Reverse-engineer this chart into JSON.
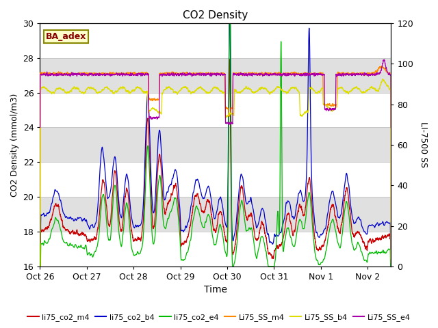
{
  "title": "CO2 Density",
  "xlabel": "Time",
  "ylabel_left": "CO2 Density (mmol/m3)",
  "ylabel_right": "LI-7500 SS",
  "ylim_left": [
    16,
    30
  ],
  "ylim_right": [
    0,
    120
  ],
  "xlim": [
    0,
    7.5
  ],
  "annotation_text": "BA_adex",
  "annotation_box_facecolor": "#ffffcc",
  "annotation_border_color": "#888800",
  "annotation_text_color": "#880000",
  "xtick_labels": [
    "Oct 26",
    "Oct 27",
    "Oct 28",
    "Oct 29",
    "Oct 30",
    "Oct 31",
    "Nov 1",
    "Nov 2"
  ],
  "xtick_positions": [
    0,
    1,
    2,
    3,
    4,
    5,
    6,
    7
  ],
  "ytick_left": [
    16,
    18,
    20,
    22,
    24,
    26,
    28,
    30
  ],
  "ytick_right": [
    0,
    20,
    40,
    60,
    80,
    100,
    120
  ],
  "colors": {
    "li75_co2_m4": "#cc0000",
    "li75_co2_b4": "#0000cc",
    "li75_co2_e4": "#00bb00",
    "Li75_SS_m4": "#ff8800",
    "Li75_SS_b4": "#dddd00",
    "Li75_SS_e4": "#aa00aa"
  },
  "legend_labels": [
    "li75_co2_m4",
    "li75_co2_b4",
    "li75_co2_e4",
    "Li75_SS_m4",
    "Li75_SS_b4",
    "Li75_SS_e4"
  ],
  "background_color": "#ffffff",
  "band_color": "#e0e0e0",
  "linewidth": 0.9
}
